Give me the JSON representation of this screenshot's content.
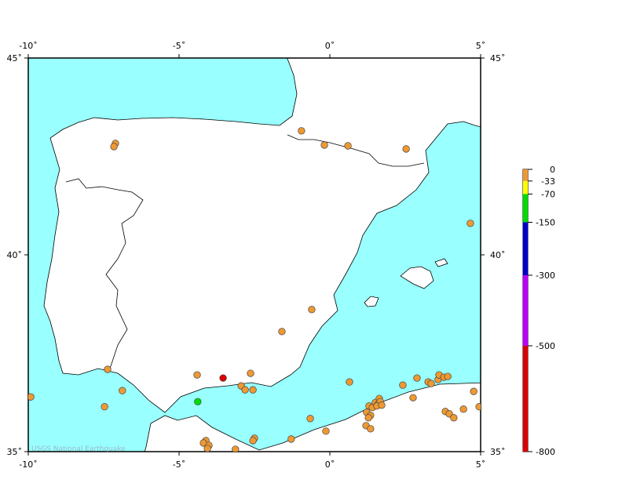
{
  "map": {
    "xlim": [
      -10,
      5
    ],
    "ylim": [
      35,
      45
    ],
    "xticks": [
      {
        "value": -10,
        "label": "-10˚"
      },
      {
        "value": -5,
        "label": "-5˚"
      },
      {
        "value": 0,
        "label": "0˚"
      },
      {
        "value": 5,
        "label": "5˚"
      }
    ],
    "yticks": [
      {
        "value": 35,
        "label": "35˚"
      },
      {
        "value": 40,
        "label": "40˚"
      },
      {
        "value": 45,
        "label": "45˚"
      }
    ],
    "watermark": "USGS National Earthquake",
    "quakes": {
      "lon": [
        -0.94,
        -0.18,
        0.6,
        2.53,
        -7.11,
        -7.16,
        4.66,
        -0.6,
        -1.59,
        -4.4,
        -2.63,
        -7.37,
        -9.92,
        -6.88,
        -7.47,
        -2.94,
        -2.81,
        -2.55,
        0.65,
        2.42,
        2.89,
        3.26,
        3.36,
        3.59,
        3.62,
        3.78,
        3.91,
        2.76,
        4.77,
        4.43,
        4.95,
        3.83,
        3.96,
        4.11,
        1.3,
        1.41,
        1.22,
        1.35,
        1.28,
        1.51,
        1.59,
        1.64,
        1.67,
        1.56,
        1.72,
        1.2,
        1.35,
        -0.65,
        -0.13,
        -1.28,
        -2.5,
        -2.55,
        -4.11,
        -4.19,
        -4.01,
        -4.06,
        -3.13,
        -3.54,
        -4.38
      ],
      "lat": [
        43.15,
        42.79,
        42.77,
        42.69,
        42.83,
        42.75,
        40.8,
        38.61,
        38.05,
        36.95,
        36.99,
        37.09,
        36.39,
        36.55,
        36.14,
        36.67,
        36.57,
        36.57,
        36.77,
        36.69,
        36.87,
        36.77,
        36.73,
        36.83,
        36.95,
        36.89,
        36.91,
        36.37,
        36.53,
        36.08,
        36.14,
        36.02,
        35.96,
        35.86,
        36.16,
        36.12,
        36.0,
        35.92,
        35.86,
        36.25,
        36.2,
        36.35,
        36.27,
        36.16,
        36.18,
        35.66,
        35.58,
        35.84,
        35.52,
        35.32,
        35.34,
        35.28,
        35.28,
        35.22,
        35.16,
        35.08,
        35.06,
        36.87,
        36.27
      ],
      "depth": [
        -10,
        -10,
        -10,
        -10,
        -10,
        -10,
        -10,
        -10,
        -10,
        -10,
        -10,
        -10,
        -10,
        -10,
        -10,
        -10,
        -10,
        -10,
        -10,
        -10,
        -10,
        -10,
        -10,
        -10,
        -10,
        -10,
        -10,
        -10,
        -10,
        -10,
        -10,
        -10,
        -10,
        -10,
        -10,
        -10,
        -10,
        -10,
        -10,
        -10,
        -10,
        -10,
        -10,
        -10,
        -10,
        -10,
        -10,
        -10,
        -10,
        -10,
        -10,
        -10,
        -10,
        -10,
        -10,
        -10,
        -10,
        -600,
        -100
      ]
    }
  },
  "depth_scale": {
    "lim": [
      0,
      -800
    ],
    "ticks": [
      0,
      -33,
      -70,
      -150,
      -300,
      -500,
      -800
    ],
    "bands": [
      {
        "from": 0,
        "to": -33,
        "color": "#ee9933"
      },
      {
        "from": -33,
        "to": -70,
        "color": "#ffff00"
      },
      {
        "from": -70,
        "to": -150,
        "color": "#00dd00"
      },
      {
        "from": -150,
        "to": -300,
        "color": "#0000cc"
      },
      {
        "from": -300,
        "to": -500,
        "color": "#bb00ff"
      },
      {
        "from": -500,
        "to": -800,
        "color": "#dd0000"
      }
    ]
  }
}
